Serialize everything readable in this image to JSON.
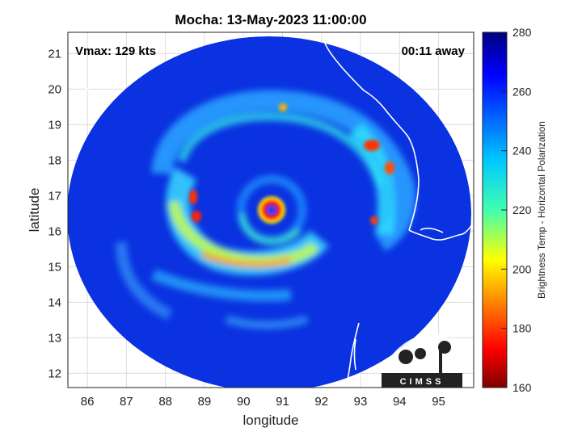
{
  "title": "Mocha: 13-May-2023 11:00:00",
  "annotations": {
    "vmax": "Vmax: 129 kts",
    "away": "00:11 away"
  },
  "axes": {
    "xlabel": "longitude",
    "ylabel": "latitude",
    "xlim": [
      85.5,
      95.9
    ],
    "ylim": [
      11.6,
      21.6
    ],
    "xticks": [
      "86",
      "87",
      "88",
      "89",
      "90",
      "91",
      "92",
      "93",
      "94",
      "95"
    ],
    "yticks": [
      "12",
      "13",
      "14",
      "15",
      "16",
      "17",
      "18",
      "19",
      "20",
      "21"
    ],
    "grid": true
  },
  "colorbar": {
    "label": "Brightness Temp - Horizontal Polarization",
    "range": [
      160,
      280
    ],
    "ticks": [
      "280",
      "260",
      "240",
      "220",
      "200",
      "180",
      "160"
    ],
    "colormap": "jet"
  },
  "logo": {
    "text": "CIMSS"
  },
  "chart_data": {
    "type": "heatmap",
    "title": "Mocha: 13-May-2023 11:00:00",
    "xlabel": "longitude",
    "ylabel": "latitude",
    "eye_center": {
      "lon": 90.6,
      "lat": 16.6
    },
    "swath_center": {
      "lon": 90.7,
      "lat": 16.5
    },
    "value_range_K": [
      160,
      280
    ],
    "colors": {
      "cold": "#7f0000",
      "warm": "#00007f",
      "land_outline": "#ffffff",
      "frame": "#000000"
    }
  }
}
